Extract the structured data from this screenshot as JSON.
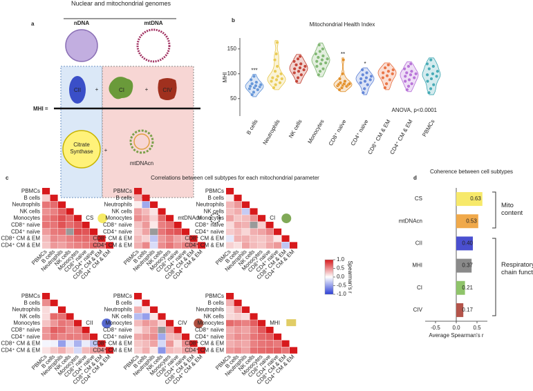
{
  "panel_labels": [
    "a",
    "b",
    "c",
    "d"
  ],
  "diagram": {
    "header": "Nuclear and mitochondrial genomes",
    "ndna": "nDNA",
    "mtdna": "mtDNA",
    "lhs": "MHI =",
    "plus": "+",
    "terms": [
      "CII",
      "CI",
      "CIV",
      "Citrate Synthase",
      "mtDNAcn"
    ]
  },
  "annotations": [
    "Mito content",
    "Respiratory chain function"
  ],
  "chart_data": [
    {
      "type": "violin",
      "title": "Mitochondrial Health Index",
      "y_label": "MHI",
      "note": "ANOVA, p<0.0001",
      "categories": [
        "B cells",
        "Neutrophils",
        "NK cells",
        "Monocytes",
        "CD8⁺ naïve",
        "CD4⁺ naïve",
        "CD8⁺ CM & EM",
        "CD4⁺ CM & EM",
        "PBMCs"
      ],
      "colors": [
        "#5b8fd6",
        "#e8c84a",
        "#c0392b",
        "#79b36a",
        "#e08a1e",
        "#5b7fd6",
        "#e86b3a",
        "#b36ad6",
        "#3aa5b0"
      ],
      "significance": [
        "***",
        null,
        null,
        null,
        "**",
        "*",
        null,
        null,
        null
      ],
      "values": [
        [
          58,
          63,
          68,
          70,
          72,
          74,
          75,
          76,
          78,
          80,
          83,
          88,
          95
        ],
        [
          72,
          78,
          82,
          85,
          88,
          90,
          92,
          95,
          100,
          105,
          115,
          128,
          140,
          163
        ],
        [
          85,
          92,
          98,
          102,
          105,
          108,
          110,
          112,
          115,
          118,
          120,
          125,
          130,
          135
        ],
        [
          98,
          105,
          110,
          115,
          120,
          122,
          125,
          128,
          130,
          133,
          136,
          140,
          145,
          150,
          158
        ],
        [
          68,
          72,
          75,
          76,
          77,
          78,
          79,
          80,
          80,
          82,
          85,
          90,
          100,
          128
        ],
        [
          62,
          70,
          78,
          82,
          85,
          88,
          90,
          92,
          95,
          98,
          102,
          108
        ],
        [
          72,
          80,
          88,
          92,
          96,
          100,
          102,
          105,
          108,
          112,
          118
        ],
        [
          68,
          75,
          80,
          85,
          88,
          92,
          95,
          98,
          100,
          102,
          105,
          110,
          115,
          120
        ],
        [
          62,
          70,
          78,
          85,
          90,
          95,
          98,
          100,
          105,
          110,
          115,
          120,
          128
        ]
      ],
      "ylim": [
        15,
        172
      ],
      "yticks": [
        50,
        100,
        150
      ]
    },
    {
      "type": "heatmap",
      "title": "Correlations between cell subtypes for each mitochondrial parameter",
      "labels": [
        "PBMCs",
        "B cells",
        "Neutrophils",
        "NK cells",
        "Monocytes",
        "CD8⁺ naïve",
        "CD4⁺ naïve",
        "CD8⁺ CM & EM",
        "CD4⁺ CM & EM"
      ],
      "clim": [
        -1,
        1
      ],
      "colorbar_label": "Spearman's r",
      "colorbar_ticks": [
        {
          "value": 1,
          "label": "1.0"
        },
        {
          "value": 0.5,
          "label": "0.5"
        },
        {
          "value": 0,
          "label": "0.0"
        },
        {
          "value": -0.5,
          "label": "-0.5"
        },
        {
          "value": -1,
          "label": "-1.0"
        }
      ],
      "matrices": [
        {
          "name": "CS",
          "values": [
            [
              1
            ],
            [
              0.21,
              1
            ],
            [
              0.6,
              0.64,
              1
            ],
            [
              0.48,
              0.55,
              0.7,
              1
            ],
            [
              0.56,
              0.65,
              0.77,
              0.66,
              1
            ],
            [
              0.61,
              0.6,
              0.75,
              0.64,
              0.72,
              1
            ],
            [
              0.43,
              0.58,
              0.61,
              null,
              0.77,
              0.74,
              1
            ],
            [
              0.3,
              0.52,
              0.48,
              0.55,
              0.63,
              0.65,
              0.6,
              1
            ],
            [
              0.25,
              0.45,
              0.41,
              0.5,
              0.55,
              0.58,
              0.66,
              0.62,
              1
            ]
          ]
        },
        {
          "name": "mtDNAcn",
          "values": [
            [
              1
            ],
            [
              0.35,
              1
            ],
            [
              0.07,
              -0.45,
              1
            ],
            [
              0.42,
              0.3,
              0.12,
              1
            ],
            [
              0.5,
              0.4,
              0.2,
              0.65,
              1
            ],
            [
              0.27,
              0.45,
              0.1,
              0.56,
              0.62,
              1
            ],
            [
              0.22,
              0.4,
              null,
              0.6,
              0.7,
              0.75,
              1
            ],
            [
              0.3,
              0.2,
              -0.3,
              0.45,
              0.55,
              0.4,
              0.35,
              1
            ],
            [
              0.35,
              0.52,
              -0.18,
              0.5,
              0.6,
              0.48,
              0.55,
              0.63,
              1
            ]
          ]
        },
        {
          "name": "CI",
          "values": [
            [
              1
            ],
            [
              0.08,
              1
            ],
            [
              0.32,
              0.45,
              1
            ],
            [
              0.28,
              0.36,
              -0.27,
              1
            ],
            [
              0.4,
              0.25,
              0.3,
              0.48,
              1
            ],
            [
              0.16,
              0.38,
              0.34,
              null,
              0.21,
              1
            ],
            [
              0.22,
              0.3,
              0.18,
              0.35,
              0.4,
              0.52,
              1
            ],
            [
              -0.12,
              0.34,
              0.35,
              0.28,
              0.25,
              0.33,
              0.11,
              1
            ],
            [
              0.2,
              0.14,
              0.4,
              0.3,
              0.25,
              0.38,
              0.45,
              -0.3,
              1
            ]
          ]
        },
        {
          "name": "CII",
          "values": [
            [
              1
            ],
            [
              0.5,
              1
            ],
            [
              0.16,
              -0.03,
              1
            ],
            [
              0.16,
              0.65,
              0.62,
              1
            ],
            [
              0.26,
              0.45,
              0.6,
              0.55,
              1
            ],
            [
              0.46,
              0.7,
              0.64,
              0.5,
              0.55,
              1
            ],
            [
              0.46,
              0.61,
              0.53,
              0.58,
              0.56,
              0.62,
              1
            ],
            [
              -0.05,
              -0.07,
              -0.5,
              -0.13,
              -0.4,
              -0.1,
              -0.3,
              1
            ],
            [
              0.12,
              0.25,
              0.35,
              0.2,
              -0.2,
              0.3,
              0.4,
              0.45,
              1
            ]
          ]
        },
        {
          "name": "CIV",
          "values": [
            [
              1
            ],
            [
              -0.05,
              1
            ],
            [
              0.35,
              0.12,
              1
            ],
            [
              -0.35,
              -0.5,
              0.1,
              1
            ],
            [
              0.3,
              0.45,
              0.4,
              0.2,
              1
            ],
            [
              0.12,
              0.31,
              0.44,
              null,
              0.45,
              1
            ],
            [
              0.37,
              0.44,
              0.5,
              -0.45,
              0.3,
              0.35,
              1
            ],
            [
              0.25,
              0.3,
              0.4,
              -0.2,
              0.45,
              0.15,
              0.5,
              1
            ],
            [
              0.2,
              0.35,
              0.1,
              -0.55,
              0.3,
              0.25,
              0.4,
              0.35,
              1
            ]
          ]
        },
        {
          "name": "MHI",
          "values": [
            [
              1
            ],
            [
              0.35,
              1
            ],
            [
              0.17,
              0.41,
              1
            ],
            [
              0.17,
              0.21,
              0.15,
              1
            ],
            [
              0.65,
              0.6,
              0.55,
              0.7,
              1
            ],
            [
              0.36,
              0.45,
              0.4,
              0.55,
              0.72,
              1
            ],
            [
              0.4,
              0.5,
              0.45,
              0.6,
              0.66,
              0.7,
              1
            ],
            [
              0.35,
              0.4,
              0.38,
              0.55,
              0.6,
              0.62,
              0.58,
              1
            ],
            [
              0.45,
              0.5,
              0.4,
              0.62,
              0.65,
              0.68,
              0.7,
              0.6,
              1
            ]
          ]
        }
      ]
    },
    {
      "type": "hbar",
      "title": "Coherence between cell subtypes",
      "x_label": "Average Spearman's r",
      "categories": [
        "CS",
        "mtDNAcn",
        "CII",
        "MHI",
        "CI",
        "CIV"
      ],
      "values": [
        0.63,
        0.53,
        0.4,
        0.37,
        0.21,
        0.17
      ],
      "value_labels": [
        "0.63",
        "0.53",
        "0.40",
        "0.37",
        "0.21",
        "0.17"
      ],
      "colors": [
        "#f7e96a",
        "#f0a94a",
        "#4a4fd0",
        "#8a8a8a",
        "#8fc46a",
        "#b4544a"
      ],
      "xlim": [
        -0.75,
        0.75
      ],
      "xticks": [
        {
          "value": -0.5,
          "label": "-0.5"
        },
        {
          "value": 0,
          "label": "0.0"
        },
        {
          "value": 0.5,
          "label": "0.5"
        }
      ]
    }
  ]
}
